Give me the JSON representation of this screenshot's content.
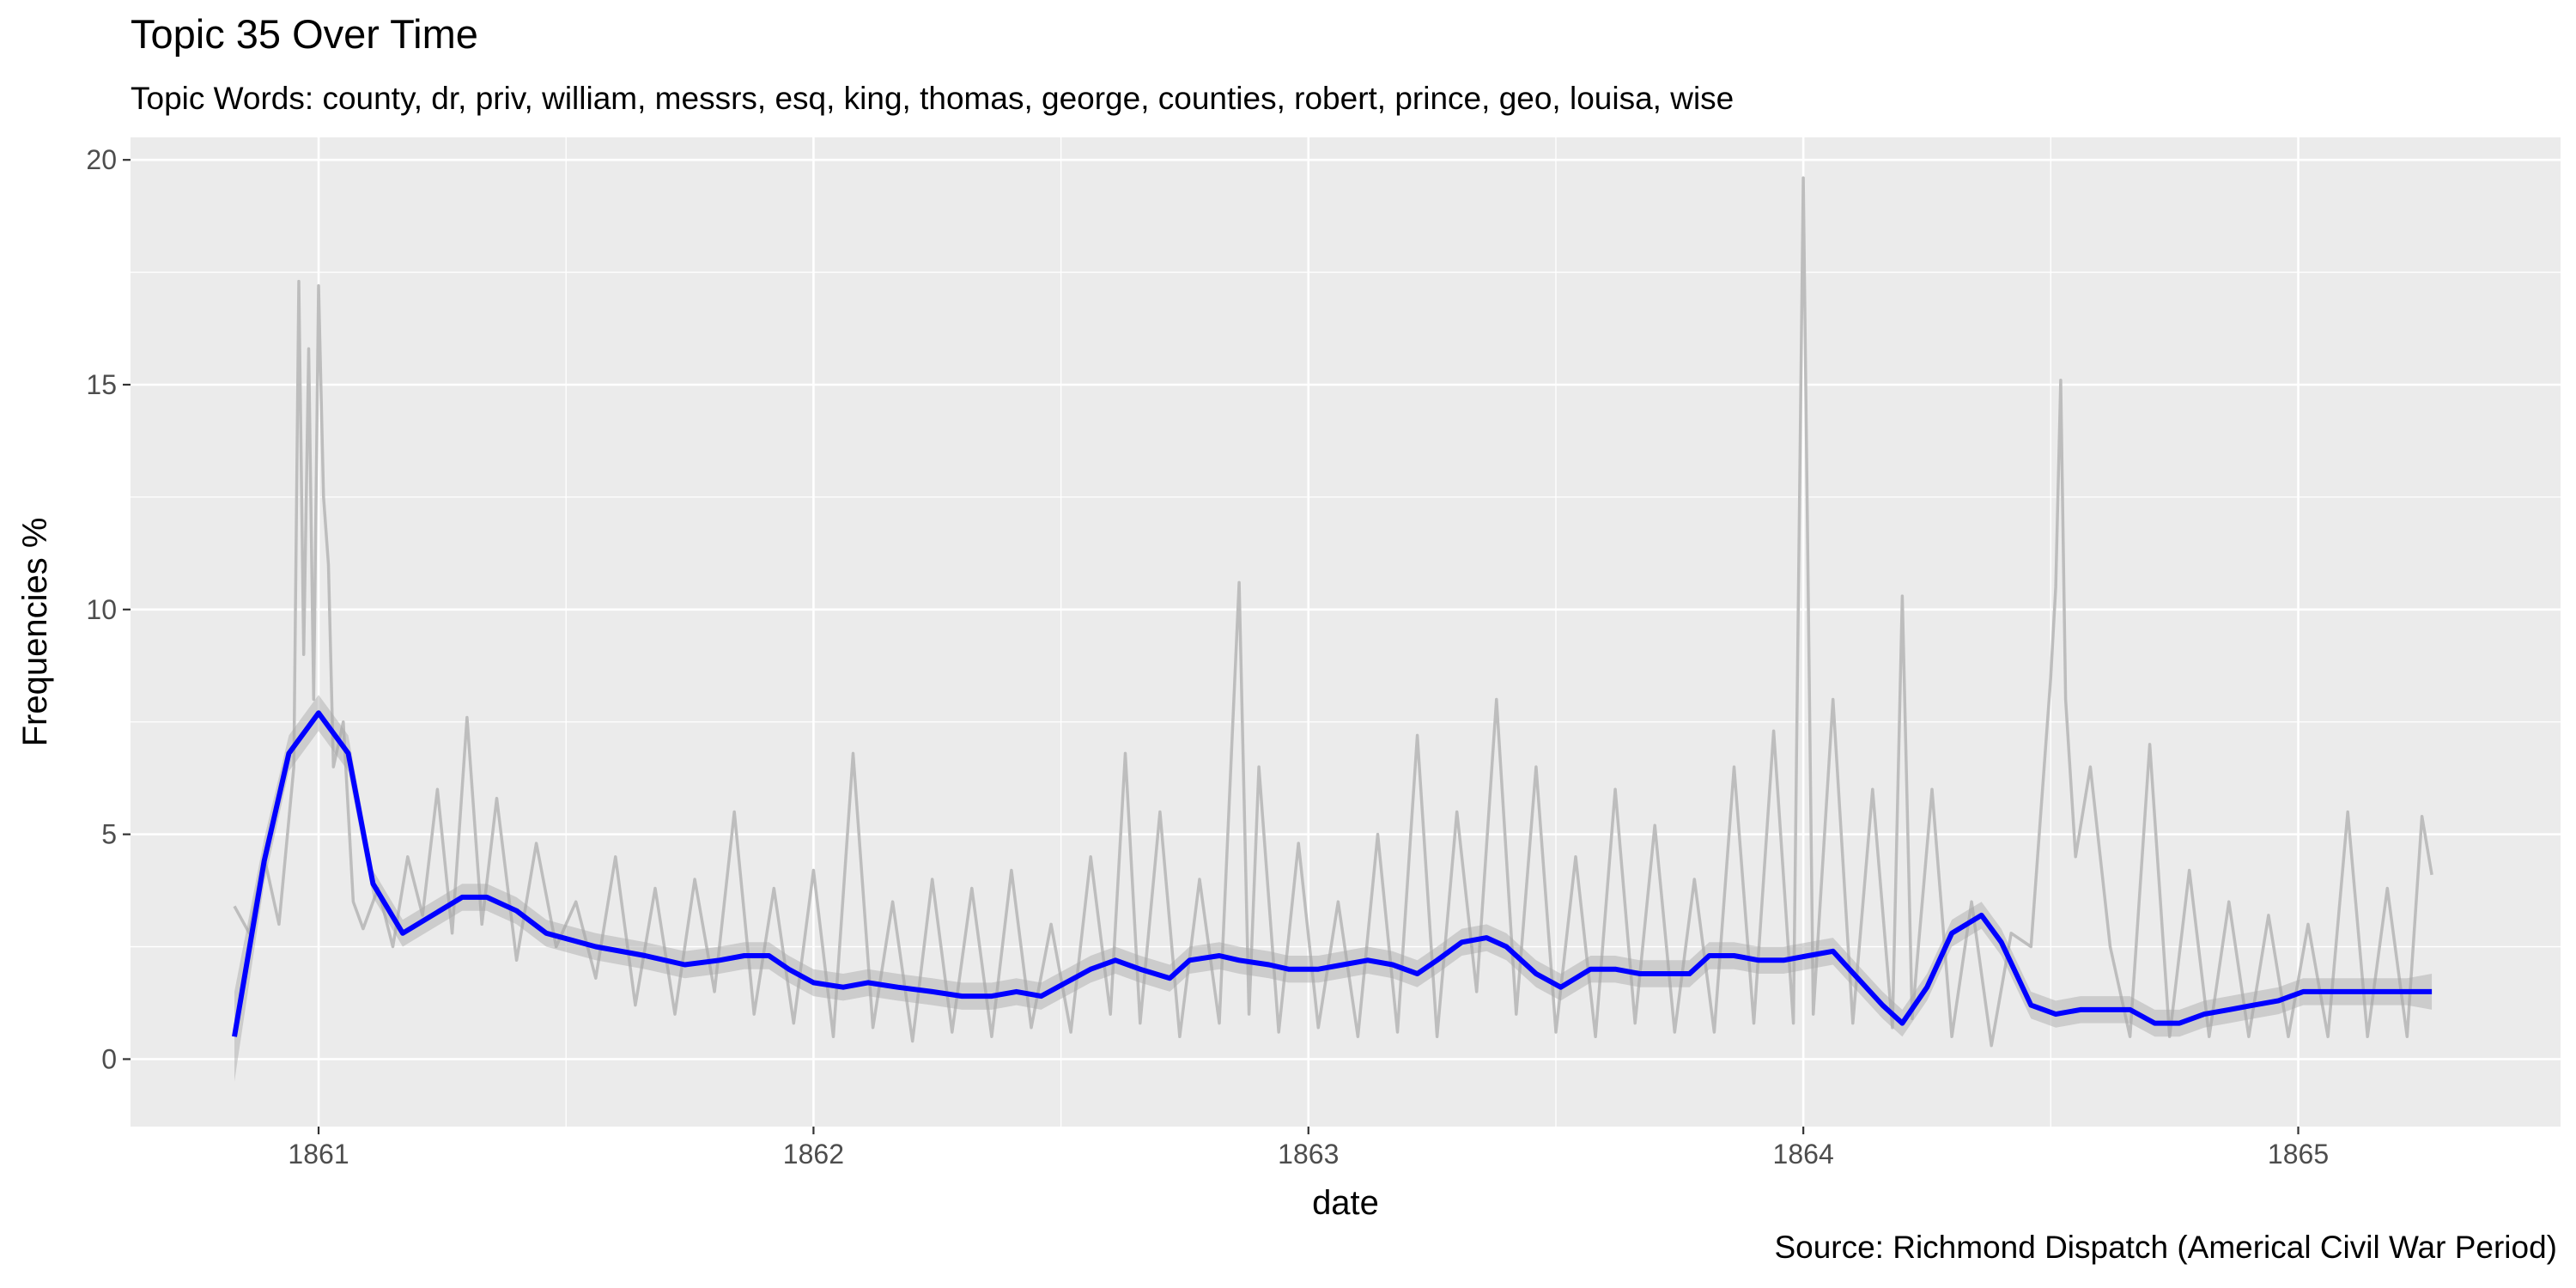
{
  "chart_data": {
    "type": "line",
    "title": "Topic 35 Over Time",
    "subtitle": "Topic Words: county, dr, priv, william, messrs, esq, king, thomas, george, counties, robert, prince, geo, louisa, wise",
    "caption": "Source: Richmond Dispatch (Americal Civil War Period)",
    "xlabel": "date",
    "ylabel": "Frequencies %",
    "xlim": [
      1860.62,
      1865.53
    ],
    "ylim": [
      -1.5,
      20.5
    ],
    "x_ticks": [
      1861,
      1862,
      1863,
      1864,
      1865
    ],
    "x_tick_labels": [
      "1861",
      "1862",
      "1863",
      "1864",
      "1865"
    ],
    "x_minor_ticks": [
      1861.5,
      1862.5,
      1863.5,
      1864.5
    ],
    "y_ticks": [
      0,
      5,
      10,
      15,
      20
    ],
    "y_tick_labels": [
      "0",
      "5",
      "10",
      "15",
      "20"
    ],
    "y_minor_ticks": [
      2.5,
      7.5,
      12.5,
      17.5
    ],
    "grid": true,
    "legend": "none",
    "colors": {
      "panel": "#ebebeb",
      "grid": "#ffffff",
      "raw": "#bdbdbd",
      "band": "#a6a6a6",
      "smooth": "#0000ff"
    },
    "series": [
      {
        "style": "raw",
        "x": [
          1860.83,
          1860.86,
          1860.89,
          1860.92,
          1860.95,
          1860.96,
          1860.97,
          1860.98,
          1860.99,
          1861.0,
          1861.01,
          1861.02,
          1861.03,
          1861.05,
          1861.07,
          1861.09,
          1861.12,
          1861.15,
          1861.18,
          1861.21,
          1861.24,
          1861.27,
          1861.3,
          1861.33,
          1861.36,
          1861.4,
          1861.44,
          1861.48,
          1861.52,
          1861.56,
          1861.6,
          1861.64,
          1861.68,
          1861.72,
          1861.76,
          1861.8,
          1861.84,
          1861.88,
          1861.92,
          1861.96,
          1862.0,
          1862.04,
          1862.08,
          1862.12,
          1862.16,
          1862.2,
          1862.24,
          1862.28,
          1862.32,
          1862.36,
          1862.4,
          1862.44,
          1862.48,
          1862.52,
          1862.56,
          1862.6,
          1862.63,
          1862.66,
          1862.7,
          1862.74,
          1862.78,
          1862.82,
          1862.86,
          1862.88,
          1862.9,
          1862.94,
          1862.98,
          1863.02,
          1863.06,
          1863.1,
          1863.14,
          1863.18,
          1863.22,
          1863.26,
          1863.3,
          1863.34,
          1863.38,
          1863.42,
          1863.46,
          1863.5,
          1863.54,
          1863.58,
          1863.62,
          1863.66,
          1863.7,
          1863.74,
          1863.78,
          1863.82,
          1863.86,
          1863.9,
          1863.94,
          1863.98,
          1864.0,
          1864.02,
          1864.06,
          1864.1,
          1864.14,
          1864.18,
          1864.2,
          1864.22,
          1864.26,
          1864.3,
          1864.34,
          1864.38,
          1864.42,
          1864.46,
          1864.5,
          1864.51,
          1864.52,
          1864.53,
          1864.55,
          1864.58,
          1864.62,
          1864.66,
          1864.7,
          1864.74,
          1864.78,
          1864.82,
          1864.86,
          1864.9,
          1864.94,
          1864.98,
          1865.02,
          1865.06,
          1865.1,
          1865.14,
          1865.18,
          1865.22,
          1865.25,
          1865.27
        ],
        "y": [
          3.4,
          2.8,
          4.5,
          3.0,
          6.5,
          17.3,
          9.0,
          15.8,
          8.0,
          17.2,
          12.5,
          11.0,
          6.5,
          7.5,
          3.5,
          2.9,
          3.8,
          2.5,
          4.5,
          3.2,
          6.0,
          2.8,
          7.6,
          3.0,
          5.8,
          2.2,
          4.8,
          2.5,
          3.5,
          1.8,
          4.5,
          1.2,
          3.8,
          1.0,
          4.0,
          1.5,
          5.5,
          1.0,
          3.8,
          0.8,
          4.2,
          0.5,
          6.8,
          0.7,
          3.5,
          0.4,
          4.0,
          0.6,
          3.8,
          0.5,
          4.2,
          0.7,
          3.0,
          0.6,
          4.5,
          1.0,
          6.8,
          0.8,
          5.5,
          0.5,
          4.0,
          0.8,
          10.6,
          1.0,
          6.5,
          0.6,
          4.8,
          0.7,
          3.5,
          0.5,
          5.0,
          0.6,
          7.2,
          0.5,
          5.5,
          1.5,
          8.0,
          1.0,
          6.5,
          0.6,
          4.5,
          0.5,
          6.0,
          0.8,
          5.2,
          0.6,
          4.0,
          0.6,
          6.5,
          0.8,
          7.3,
          0.8,
          19.6,
          1.0,
          8.0,
          0.8,
          6.0,
          0.7,
          10.3,
          0.9,
          6.0,
          0.5,
          3.5,
          0.3,
          2.8,
          2.5,
          8.5,
          10.5,
          15.1,
          8.0,
          4.5,
          6.5,
          2.5,
          0.5,
          7.0,
          0.5,
          4.2,
          0.5,
          3.5,
          0.5,
          3.2,
          0.5,
          3.0,
          0.5,
          5.5,
          0.5,
          3.8,
          0.5,
          5.4,
          4.1
        ]
      },
      {
        "style": "smooth",
        "x": [
          1860.83,
          1860.89,
          1860.94,
          1861.0,
          1861.06,
          1861.11,
          1861.17,
          1861.29,
          1861.34,
          1861.4,
          1861.46,
          1861.56,
          1861.66,
          1861.74,
          1861.81,
          1861.86,
          1861.91,
          1861.95,
          1862.0,
          1862.06,
          1862.11,
          1862.17,
          1862.24,
          1862.3,
          1862.36,
          1862.41,
          1862.46,
          1862.51,
          1862.56,
          1862.61,
          1862.66,
          1862.72,
          1862.76,
          1862.82,
          1862.86,
          1862.92,
          1862.96,
          1863.02,
          1863.07,
          1863.12,
          1863.17,
          1863.22,
          1863.26,
          1863.31,
          1863.36,
          1863.4,
          1863.46,
          1863.51,
          1863.57,
          1863.62,
          1863.67,
          1863.71,
          1863.77,
          1863.81,
          1863.86,
          1863.91,
          1863.96,
          1864.01,
          1864.06,
          1864.11,
          1864.16,
          1864.2,
          1864.25,
          1864.3,
          1864.36,
          1864.4,
          1864.46,
          1864.51,
          1864.56,
          1864.61,
          1864.66,
          1864.71,
          1864.76,
          1864.81,
          1864.86,
          1864.91,
          1864.96,
          1865.01,
          1865.06,
          1865.11,
          1865.17,
          1865.22,
          1865.27
        ],
        "y": [
          0.5,
          4.4,
          6.8,
          7.7,
          6.8,
          3.9,
          2.8,
          3.6,
          3.6,
          3.3,
          2.8,
          2.5,
          2.3,
          2.1,
          2.2,
          2.3,
          2.3,
          2.0,
          1.7,
          1.6,
          1.7,
          1.6,
          1.5,
          1.4,
          1.4,
          1.5,
          1.4,
          1.7,
          2.0,
          2.2,
          2.0,
          1.8,
          2.2,
          2.3,
          2.2,
          2.1,
          2.0,
          2.0,
          2.1,
          2.2,
          2.1,
          1.9,
          2.2,
          2.6,
          2.7,
          2.5,
          1.9,
          1.6,
          2.0,
          2.0,
          1.9,
          1.9,
          1.9,
          2.3,
          2.3,
          2.2,
          2.2,
          2.3,
          2.4,
          1.8,
          1.2,
          0.8,
          1.6,
          2.8,
          3.2,
          2.6,
          1.2,
          1.0,
          1.1,
          1.1,
          1.1,
          0.8,
          0.8,
          1.0,
          1.1,
          1.2,
          1.3,
          1.5,
          1.5,
          1.5,
          1.5,
          1.5,
          1.5
        ],
        "band_halfwidth": [
          1.0,
          0.5,
          0.4,
          0.4,
          0.4,
          0.3,
          0.3,
          0.3,
          0.3,
          0.3,
          0.3,
          0.3,
          0.3,
          0.3,
          0.3,
          0.3,
          0.3,
          0.3,
          0.3,
          0.3,
          0.3,
          0.3,
          0.3,
          0.3,
          0.3,
          0.3,
          0.3,
          0.3,
          0.3,
          0.3,
          0.3,
          0.3,
          0.3,
          0.3,
          0.3,
          0.3,
          0.3,
          0.3,
          0.3,
          0.3,
          0.3,
          0.3,
          0.3,
          0.3,
          0.3,
          0.3,
          0.3,
          0.3,
          0.3,
          0.3,
          0.3,
          0.3,
          0.3,
          0.3,
          0.3,
          0.3,
          0.3,
          0.3,
          0.3,
          0.3,
          0.3,
          0.3,
          0.3,
          0.3,
          0.3,
          0.3,
          0.3,
          0.3,
          0.3,
          0.3,
          0.3,
          0.3,
          0.3,
          0.3,
          0.3,
          0.3,
          0.3,
          0.3,
          0.3,
          0.3,
          0.3,
          0.3,
          0.4
        ]
      }
    ]
  }
}
